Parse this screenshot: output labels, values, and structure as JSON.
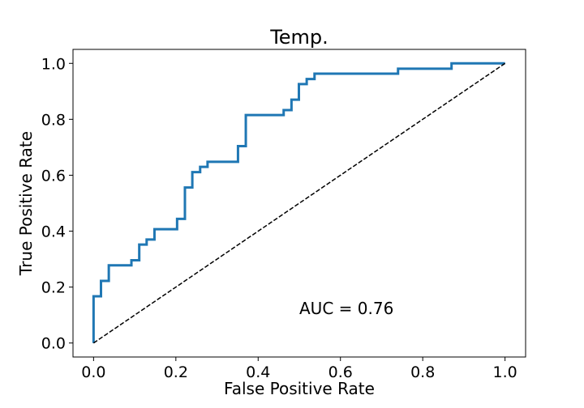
{
  "chart_data": {
    "type": "line",
    "title": "Temp.",
    "xlabel": "False Positive Rate",
    "ylabel": "True Positive Rate",
    "xlim": [
      -0.05,
      1.05
    ],
    "ylim": [
      -0.05,
      1.05
    ],
    "xticks": [
      0.0,
      0.2,
      0.4,
      0.6,
      0.8,
      1.0
    ],
    "xtick_labels": [
      "0.0",
      "0.2",
      "0.4",
      "0.6",
      "0.8",
      "1.0"
    ],
    "yticks": [
      0.0,
      0.2,
      0.4,
      0.6,
      0.8,
      1.0
    ],
    "ytick_labels": [
      "0.0",
      "0.2",
      "0.4",
      "0.6",
      "0.8",
      "1.0"
    ],
    "grid": false,
    "annotation": "AUC = 0.76",
    "series": [
      {
        "color": "#1f77b4",
        "style": "solid",
        "x": [
          0.0,
          0.0,
          0.018,
          0.018,
          0.037,
          0.037,
          0.092,
          0.092,
          0.111,
          0.111,
          0.129,
          0.129,
          0.148,
          0.148,
          0.203,
          0.203,
          0.222,
          0.222,
          0.24,
          0.24,
          0.259,
          0.259,
          0.277,
          0.277,
          0.351,
          0.351,
          0.37,
          0.37,
          0.462,
          0.462,
          0.481,
          0.481,
          0.499,
          0.499,
          0.518,
          0.518,
          0.537,
          0.537,
          0.74,
          0.74,
          0.87,
          0.87,
          1.0
        ],
        "y": [
          0.0,
          0.167,
          0.167,
          0.222,
          0.222,
          0.278,
          0.278,
          0.296,
          0.296,
          0.352,
          0.352,
          0.37,
          0.37,
          0.407,
          0.407,
          0.444,
          0.444,
          0.556,
          0.556,
          0.611,
          0.611,
          0.63,
          0.63,
          0.648,
          0.648,
          0.704,
          0.704,
          0.815,
          0.815,
          0.833,
          0.833,
          0.87,
          0.87,
          0.926,
          0.926,
          0.944,
          0.944,
          0.963,
          0.963,
          0.981,
          0.981,
          1.0,
          1.0
        ]
      },
      {
        "color": "#000000",
        "style": "dashed",
        "x": [
          0.0,
          1.0
        ],
        "y": [
          0.0,
          1.0
        ]
      }
    ]
  }
}
